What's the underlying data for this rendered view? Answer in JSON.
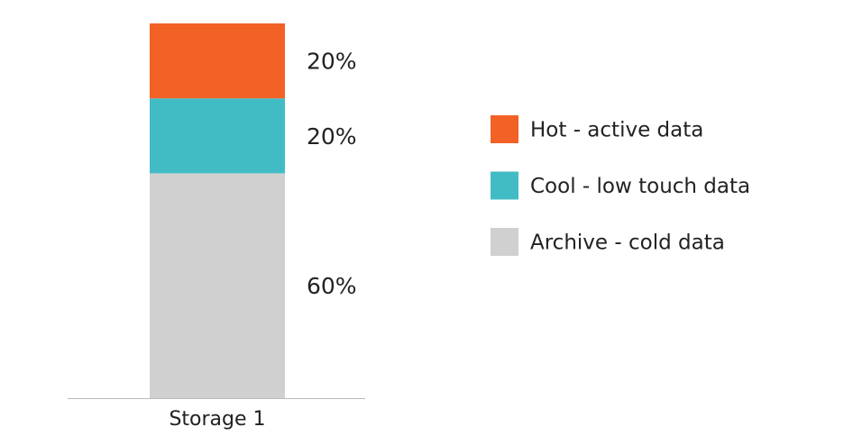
{
  "chart_data": {
    "type": "stacked_bar",
    "categories": [
      "Storage 1"
    ],
    "series": [
      {
        "name": "Hot - active data",
        "color": "#f26125",
        "values": [
          20
        ],
        "value_labels": [
          "20%"
        ]
      },
      {
        "name": "Cool - low touch data",
        "color": "#42bcc4",
        "values": [
          20
        ],
        "value_labels": [
          "20%"
        ]
      },
      {
        "name": "Archive - cold data",
        "color": "#d0d0d0",
        "values": [
          60
        ],
        "value_labels": [
          "60%"
        ]
      }
    ],
    "ylim": [
      0,
      100
    ],
    "legend": "right"
  }
}
